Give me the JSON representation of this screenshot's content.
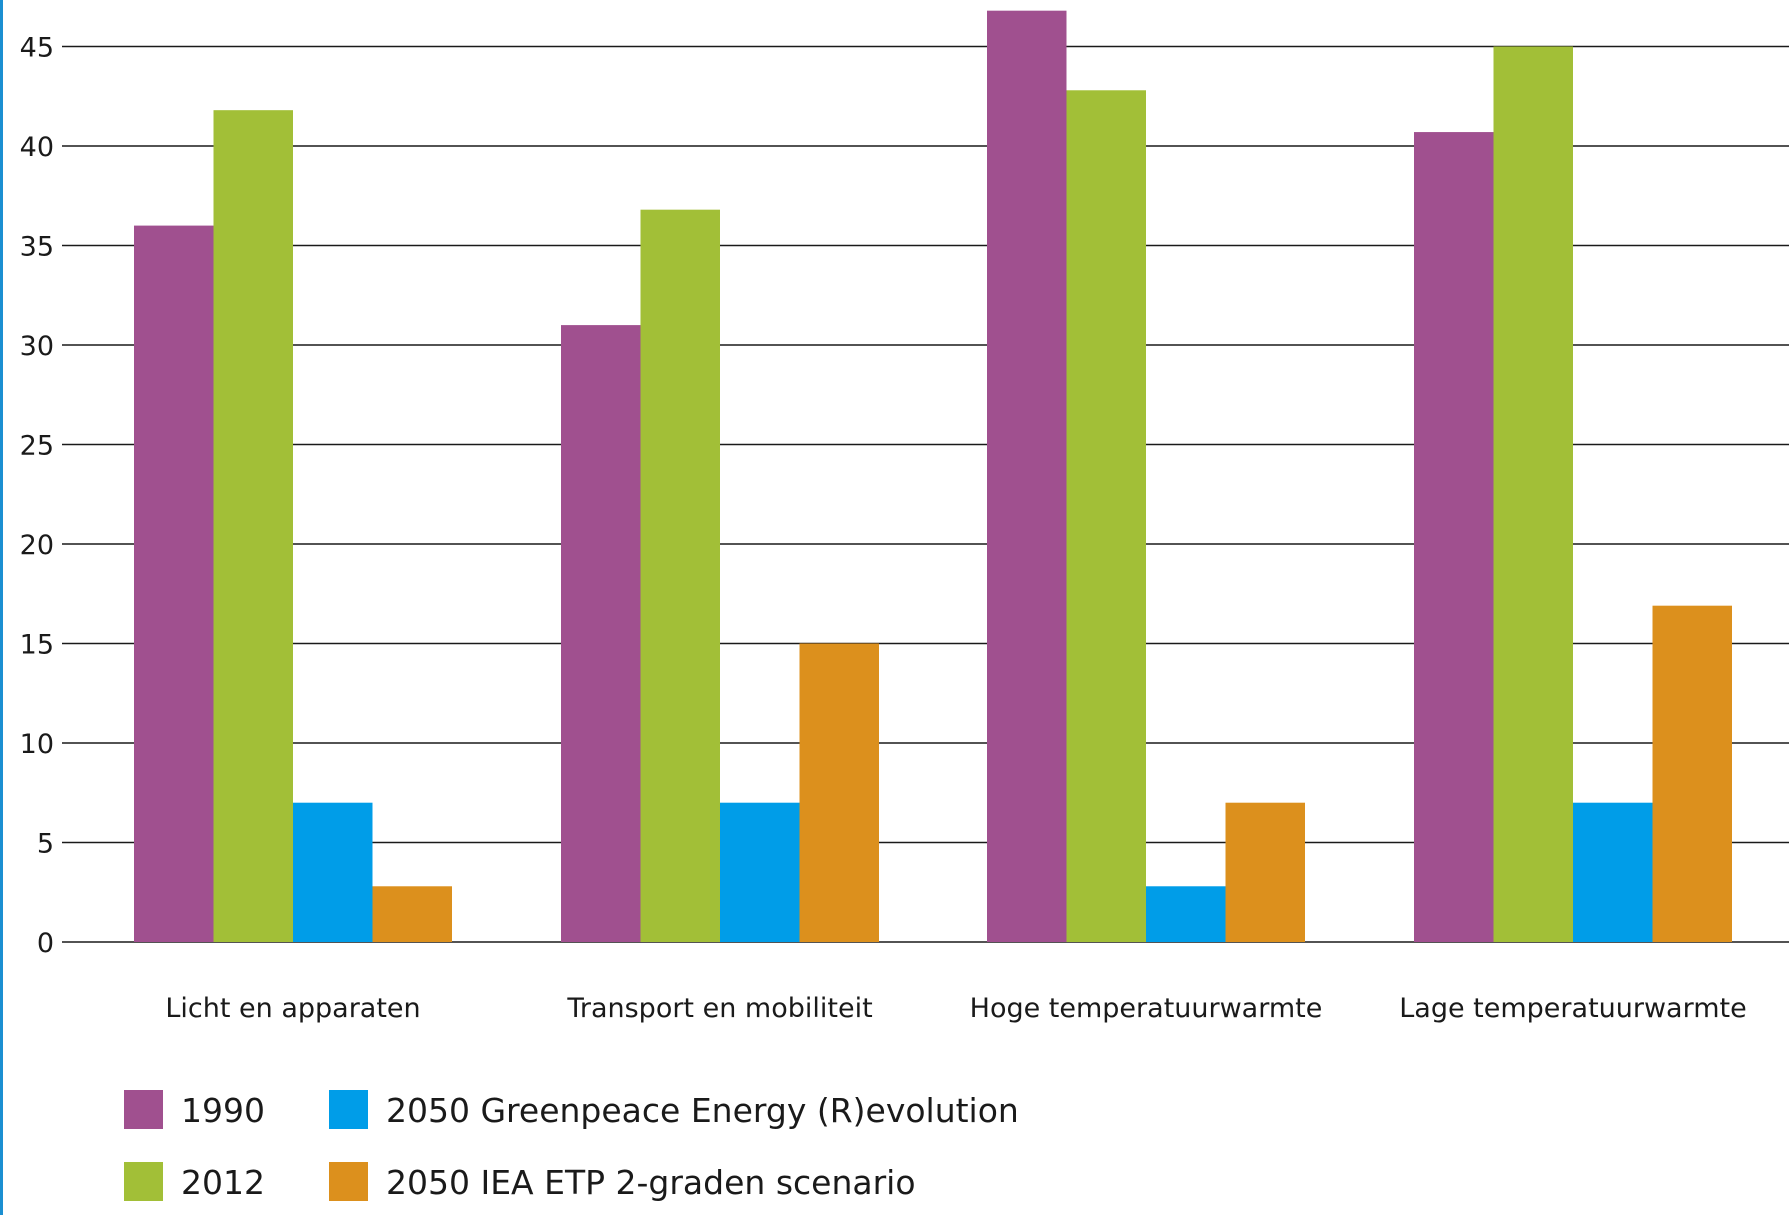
{
  "chart_data": {
    "type": "bar",
    "title": "",
    "xlabel": "",
    "ylabel": "",
    "ylim": [
      0,
      47
    ],
    "yticks": [
      0,
      5,
      10,
      15,
      20,
      25,
      30,
      35,
      40,
      45
    ],
    "grid": true,
    "legend_position": "bottom-left",
    "categories": [
      "Licht en apparaten",
      "Transport en mobiliteit",
      "Hoge temperatuurwarmte",
      "Lage temperatuurwarmte"
    ],
    "series": [
      {
        "name": "1990",
        "color": "#a0508f",
        "values": [
          36,
          31,
          46.8,
          40.7
        ]
      },
      {
        "name": "2012",
        "color": "#a2bf37",
        "values": [
          41.8,
          36.8,
          42.8,
          45
        ]
      },
      {
        "name": "2050 Greenpeace Energy (R)evolution",
        "color": "#009de8",
        "values": [
          7,
          7,
          2.8,
          7
        ]
      },
      {
        "name": "2050 IEA ETP 2-graden scenario",
        "color": "#dc901d",
        "values": [
          2.8,
          15,
          7,
          16.9
        ]
      }
    ],
    "colors": {
      "gridline": "#1a1a1a",
      "frame": "#1b8fd1"
    }
  }
}
